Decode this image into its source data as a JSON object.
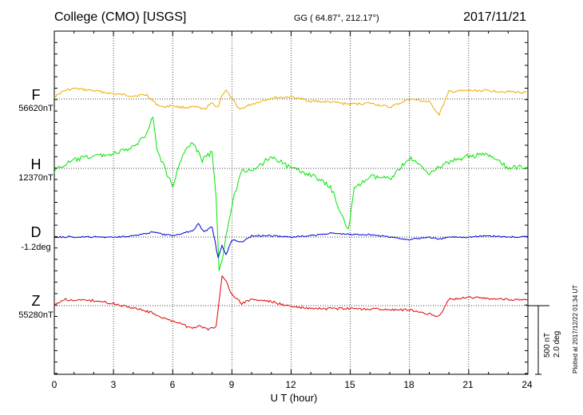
{
  "header": {
    "station": "College (CMO)  [USGS]",
    "coords": "GG ( 64.87°, 212.17°)",
    "date": "2017/11/21"
  },
  "scale": {
    "nt": "500 nT",
    "deg": "2.0 deg"
  },
  "plotted_note": "Plotted at 2017/12/22 01:34 UT",
  "colors": {
    "F": "#f0aa00",
    "H": "#00e600",
    "D": "#0000d8",
    "Z": "#e00000"
  },
  "chart_data": {
    "type": "line",
    "title": "College (CMO)  [USGS]",
    "xlabel": "U T (hour)",
    "ylabel": "",
    "xlim": [
      0,
      24
    ],
    "xticks": [
      "0",
      "3",
      "6",
      "9",
      "12",
      "15",
      "18",
      "21",
      "24"
    ],
    "grid": true,
    "series": [
      {
        "name": "F",
        "base": "56620nT",
        "unit": "nT",
        "color": "#f0aa00",
        "x": [
          0,
          0.5,
          1,
          2,
          3,
          4,
          4.7,
          5.1,
          5.5,
          6,
          6.3,
          6.8,
          7.2,
          7.6,
          8,
          8.3,
          8.5,
          8.7,
          9,
          9.4,
          10,
          11,
          12,
          13,
          14,
          15,
          16,
          17,
          18,
          19,
          19.5,
          20,
          21,
          22,
          23,
          24
        ],
        "values": [
          20,
          80,
          100,
          80,
          50,
          30,
          40,
          -40,
          -80,
          -60,
          -80,
          -80,
          -80,
          -100,
          -40,
          -80,
          40,
          80,
          0,
          -100,
          -50,
          10,
          20,
          -20,
          -30,
          -50,
          -40,
          -80,
          0,
          -30,
          -150,
          70,
          80,
          80,
          70,
          60
        ]
      },
      {
        "name": "H",
        "base": "12370nT",
        "unit": "nT",
        "color": "#00e600",
        "x": [
          0,
          1,
          2,
          3,
          4,
          4.6,
          5,
          5.2,
          6,
          6.5,
          7,
          7.5,
          8,
          8.2,
          8.35,
          8.5,
          8.7,
          9,
          9.5,
          10,
          11,
          12,
          13,
          14,
          14.9,
          15.2,
          16,
          17,
          18,
          19,
          20,
          21,
          22,
          23,
          24
        ],
        "values": [
          -20,
          80,
          120,
          140,
          200,
          320,
          500,
          180,
          -180,
          140,
          250,
          80,
          160,
          -300,
          -1000,
          -900,
          -650,
          -350,
          0,
          -40,
          120,
          0,
          -60,
          -180,
          -600,
          -200,
          -80,
          -100,
          100,
          -40,
          60,
          120,
          130,
          0,
          20
        ]
      },
      {
        "name": "D",
        "base": "-1.2deg",
        "unit": "deg",
        "color": "#0000d8",
        "x": [
          0,
          1,
          2,
          3,
          4,
          4.6,
          5,
          5.5,
          6,
          6.5,
          7,
          7.3,
          7.6,
          8,
          8.3,
          8.5,
          8.7,
          9,
          9.5,
          10,
          11,
          12,
          13,
          14,
          15,
          16,
          17,
          18,
          19,
          19.5,
          20,
          21,
          22,
          23,
          24
        ],
        "values": [
          0,
          0,
          0,
          0,
          0.05,
          0.12,
          0.2,
          0.1,
          0.05,
          0.15,
          0.25,
          0.5,
          0.2,
          0.4,
          -0.8,
          -0.3,
          -0.7,
          -0.1,
          -0.2,
          0.05,
          0.05,
          0,
          0.05,
          0.15,
          0.1,
          0.1,
          0,
          -0.1,
          0,
          -0.1,
          0,
          0,
          0.05,
          0,
          0
        ]
      },
      {
        "name": "Z",
        "base": "55280nT",
        "unit": "nT",
        "color": "#e00000",
        "x": [
          0,
          0.5,
          1,
          2,
          3,
          4,
          5,
          5.5,
          6,
          6.3,
          6.7,
          7,
          7.4,
          7.8,
          8.2,
          8.5,
          8.7,
          9,
          9.5,
          10,
          11,
          12,
          13,
          14,
          15,
          16,
          17,
          18,
          19,
          19.5,
          20,
          21,
          22,
          23,
          24
        ],
        "values": [
          0,
          60,
          50,
          50,
          20,
          -20,
          -70,
          -120,
          -150,
          -160,
          -200,
          -210,
          -200,
          -230,
          -200,
          280,
          250,
          100,
          20,
          60,
          40,
          -10,
          -30,
          -30,
          -30,
          -30,
          -40,
          -40,
          -80,
          -100,
          60,
          80,
          70,
          60,
          50
        ]
      }
    ]
  }
}
